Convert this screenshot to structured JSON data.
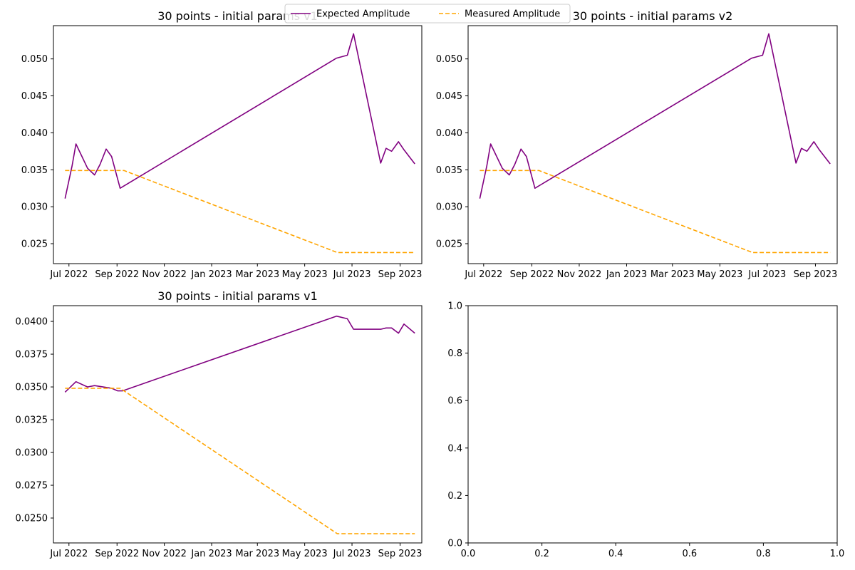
{
  "legend": {
    "placement": "top-center",
    "entries": [
      {
        "name": "Expected Amplitude",
        "color": "#800080",
        "dash": "solid"
      },
      {
        "name": "Measured Amplitude",
        "color": "#ffa500",
        "dash": "dashed"
      }
    ]
  },
  "chart_data": [
    {
      "type": "line",
      "title": "30 points - initial params v1",
      "xlabel": "",
      "ylabel": "",
      "x_type": "date",
      "xlim": [
        "2022-06-11",
        "2023-09-29"
      ],
      "ylim": [
        0.0223,
        0.0545
      ],
      "xticks": [
        {
          "date": "2022-07-01",
          "label": "Jul 2022"
        },
        {
          "date": "2022-09-01",
          "label": "Sep 2022"
        },
        {
          "date": "2022-11-01",
          "label": "Nov 2022"
        },
        {
          "date": "2023-01-01",
          "label": "Jan 2023"
        },
        {
          "date": "2023-03-01",
          "label": "Mar 2023"
        },
        {
          "date": "2023-05-01",
          "label": "May 2023"
        },
        {
          "date": "2023-07-01",
          "label": "Jul 2023"
        },
        {
          "date": "2023-09-01",
          "label": "Sep 2023"
        }
      ],
      "yticks": [
        {
          "value": 0.025,
          "label": "0.025"
        },
        {
          "value": 0.03,
          "label": "0.030"
        },
        {
          "value": 0.035,
          "label": "0.035"
        },
        {
          "value": 0.04,
          "label": "0.040"
        },
        {
          "value": 0.045,
          "label": "0.045"
        },
        {
          "value": 0.05,
          "label": "0.050"
        }
      ],
      "grid": false,
      "series": [
        {
          "name": "Expected Amplitude",
          "color": "#800080",
          "dash": "solid",
          "x": [
            "2022-06-26",
            "2022-07-05",
            "2022-07-10",
            "2022-07-25",
            "2022-08-03",
            "2022-08-10",
            "2022-08-18",
            "2022-08-25",
            "2022-09-05",
            "2023-06-11",
            "2023-06-25",
            "2023-07-03",
            "2023-08-07",
            "2023-08-14",
            "2023-08-21",
            "2023-08-30",
            "2023-09-06",
            "2023-09-20"
          ],
          "values": [
            0.0311,
            0.0355,
            0.0385,
            0.0352,
            0.0343,
            0.0357,
            0.0378,
            0.0368,
            0.0325,
            0.0501,
            0.0505,
            0.0534,
            0.0359,
            0.0379,
            0.0375,
            0.0388,
            0.0377,
            0.0358
          ]
        },
        {
          "name": "Measured Amplitude",
          "color": "#ffa500",
          "dash": "dashed",
          "x": [
            "2022-06-26",
            "2022-09-10",
            "2023-06-12",
            "2023-09-20"
          ],
          "values": [
            0.0349,
            0.0349,
            0.0238,
            0.0238
          ]
        }
      ]
    },
    {
      "type": "line",
      "title": "30 points - initial params v2",
      "xlabel": "",
      "ylabel": "",
      "x_type": "date",
      "xlim": [
        "2022-06-11",
        "2023-09-29"
      ],
      "ylim": [
        0.0223,
        0.0545
      ],
      "xticks": [
        {
          "date": "2022-07-01",
          "label": "Jul 2022"
        },
        {
          "date": "2022-09-01",
          "label": "Sep 2022"
        },
        {
          "date": "2022-11-01",
          "label": "Nov 2022"
        },
        {
          "date": "2023-01-01",
          "label": "Jan 2023"
        },
        {
          "date": "2023-03-01",
          "label": "Mar 2023"
        },
        {
          "date": "2023-05-01",
          "label": "May 2023"
        },
        {
          "date": "2023-07-01",
          "label": "Jul 2023"
        },
        {
          "date": "2023-09-01",
          "label": "Sep 2023"
        }
      ],
      "yticks": [
        {
          "value": 0.025,
          "label": "0.025"
        },
        {
          "value": 0.03,
          "label": "0.030"
        },
        {
          "value": 0.035,
          "label": "0.035"
        },
        {
          "value": 0.04,
          "label": "0.040"
        },
        {
          "value": 0.045,
          "label": "0.045"
        },
        {
          "value": 0.05,
          "label": "0.050"
        }
      ],
      "grid": false,
      "series": [
        {
          "name": "Expected Amplitude",
          "color": "#800080",
          "dash": "solid",
          "x": [
            "2022-06-26",
            "2022-07-05",
            "2022-07-10",
            "2022-07-25",
            "2022-08-03",
            "2022-08-10",
            "2022-08-18",
            "2022-08-25",
            "2022-09-05",
            "2023-06-11",
            "2023-06-25",
            "2023-07-03",
            "2023-08-07",
            "2023-08-14",
            "2023-08-21",
            "2023-08-30",
            "2023-09-06",
            "2023-09-20"
          ],
          "values": [
            0.0311,
            0.0355,
            0.0385,
            0.0352,
            0.0343,
            0.0357,
            0.0378,
            0.0368,
            0.0325,
            0.0501,
            0.0505,
            0.0534,
            0.0359,
            0.0379,
            0.0375,
            0.0388,
            0.0377,
            0.0358
          ]
        },
        {
          "name": "Measured Amplitude",
          "color": "#ffa500",
          "dash": "dashed",
          "x": [
            "2022-06-26",
            "2022-09-10",
            "2023-06-12",
            "2023-09-20"
          ],
          "values": [
            0.0349,
            0.0349,
            0.0238,
            0.0238
          ]
        }
      ]
    },
    {
      "type": "line",
      "title": "30 points - initial params v1",
      "xlabel": "",
      "ylabel": "",
      "x_type": "date",
      "xlim": [
        "2022-06-11",
        "2023-09-29"
      ],
      "ylim": [
        0.0231,
        0.0412
      ],
      "xticks": [
        {
          "date": "2022-07-01",
          "label": "Jul 2022"
        },
        {
          "date": "2022-09-01",
          "label": "Sep 2022"
        },
        {
          "date": "2022-11-01",
          "label": "Nov 2022"
        },
        {
          "date": "2023-01-01",
          "label": "Jan 2023"
        },
        {
          "date": "2023-03-01",
          "label": "Mar 2023"
        },
        {
          "date": "2023-05-01",
          "label": "May 2023"
        },
        {
          "date": "2023-07-01",
          "label": "Jul 2023"
        },
        {
          "date": "2023-09-01",
          "label": "Sep 2023"
        }
      ],
      "yticks": [
        {
          "value": 0.025,
          "label": "0.0250"
        },
        {
          "value": 0.0275,
          "label": "0.0275"
        },
        {
          "value": 0.03,
          "label": "0.0300"
        },
        {
          "value": 0.0325,
          "label": "0.0325"
        },
        {
          "value": 0.035,
          "label": "0.0350"
        },
        {
          "value": 0.0375,
          "label": "0.0375"
        },
        {
          "value": 0.04,
          "label": "0.0400"
        }
      ],
      "grid": false,
      "series": [
        {
          "name": "Expected Amplitude",
          "color": "#800080",
          "dash": "solid",
          "x": [
            "2022-06-26",
            "2022-07-10",
            "2022-07-25",
            "2022-08-03",
            "2022-08-25",
            "2022-09-02",
            "2022-09-08",
            "2023-06-11",
            "2023-06-25",
            "2023-07-03",
            "2023-07-26",
            "2023-08-07",
            "2023-08-14",
            "2023-08-21",
            "2023-08-30",
            "2023-09-06",
            "2023-09-20"
          ],
          "values": [
            0.0346,
            0.0354,
            0.035,
            0.0351,
            0.0349,
            0.0347,
            0.0347,
            0.0404,
            0.0402,
            0.0394,
            0.0394,
            0.0394,
            0.0395,
            0.0395,
            0.0391,
            0.0398,
            0.0391
          ]
        },
        {
          "name": "Measured Amplitude",
          "color": "#ffa500",
          "dash": "dashed",
          "x": [
            "2022-06-26",
            "2022-09-05",
            "2023-06-12",
            "2023-09-20"
          ],
          "values": [
            0.0349,
            0.0349,
            0.0238,
            0.0238
          ]
        }
      ]
    },
    {
      "type": "line",
      "title": "",
      "xlabel": "",
      "ylabel": "",
      "x_type": "number",
      "xlim": [
        0,
        1
      ],
      "ylim": [
        0,
        1
      ],
      "xticks": [
        {
          "value": 0.0,
          "label": "0.0"
        },
        {
          "value": 0.2,
          "label": "0.2"
        },
        {
          "value": 0.4,
          "label": "0.4"
        },
        {
          "value": 0.6,
          "label": "0.6"
        },
        {
          "value": 0.8,
          "label": "0.8"
        },
        {
          "value": 1.0,
          "label": "1.0"
        }
      ],
      "yticks": [
        {
          "value": 0.0,
          "label": "0.0"
        },
        {
          "value": 0.2,
          "label": "0.2"
        },
        {
          "value": 0.4,
          "label": "0.4"
        },
        {
          "value": 0.6,
          "label": "0.6"
        },
        {
          "value": 0.8,
          "label": "0.8"
        },
        {
          "value": 1.0,
          "label": "1.0"
        }
      ],
      "grid": false,
      "series": []
    }
  ]
}
